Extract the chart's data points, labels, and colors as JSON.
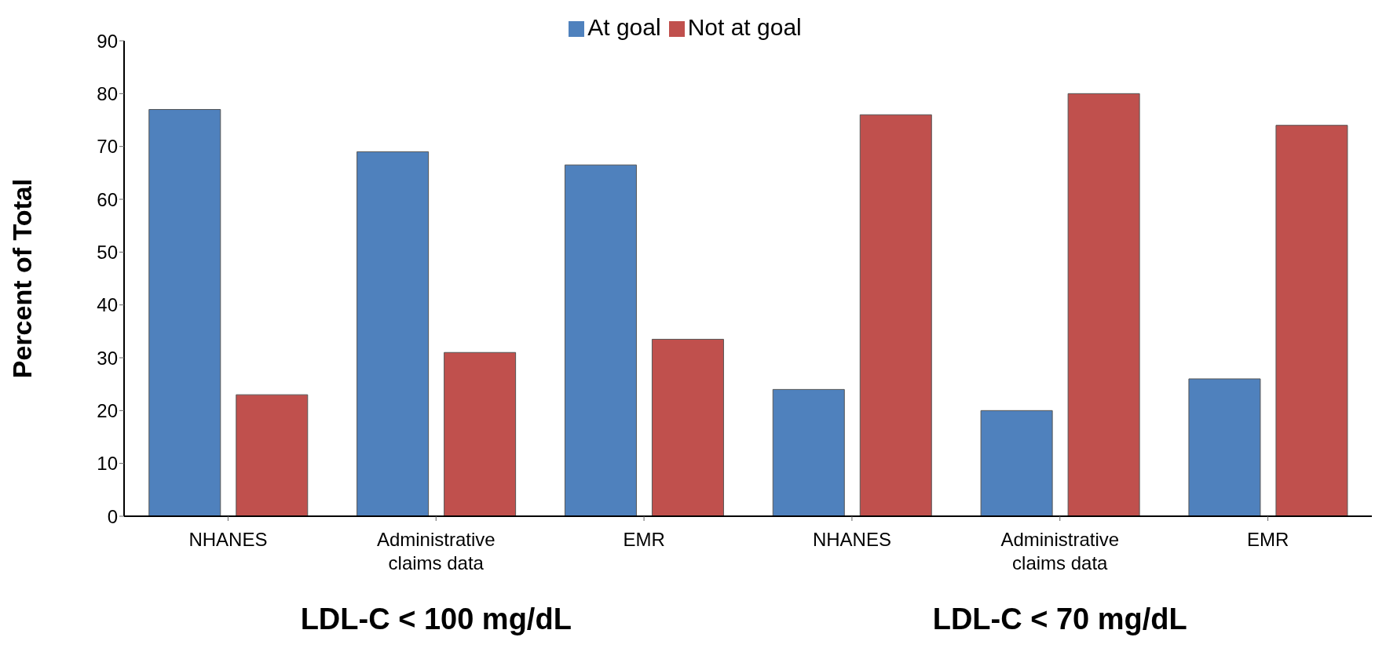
{
  "chart_data": {
    "type": "bar",
    "ylabel": "Percent of Total",
    "categories": [
      "NHANES",
      "Administrative claims data",
      "EMR",
      "NHANES",
      "Administrative claims data",
      "EMR"
    ],
    "series": [
      {
        "name": "At goal",
        "color": "#4f81bd",
        "values": [
          77,
          69,
          66.5,
          24,
          20,
          26
        ]
      },
      {
        "name": "Not at goal",
        "color": "#c0504d",
        "values": [
          23,
          31,
          33.5,
          76,
          80,
          74
        ]
      }
    ],
    "ylim": [
      0,
      90
    ],
    "yticks": [
      0,
      10,
      20,
      30,
      40,
      50,
      60,
      70,
      80,
      90
    ],
    "legend": "top",
    "annotations": [
      "LDL-C < 100 mg/dL",
      "LDL-C < 70 mg/dL"
    ]
  }
}
